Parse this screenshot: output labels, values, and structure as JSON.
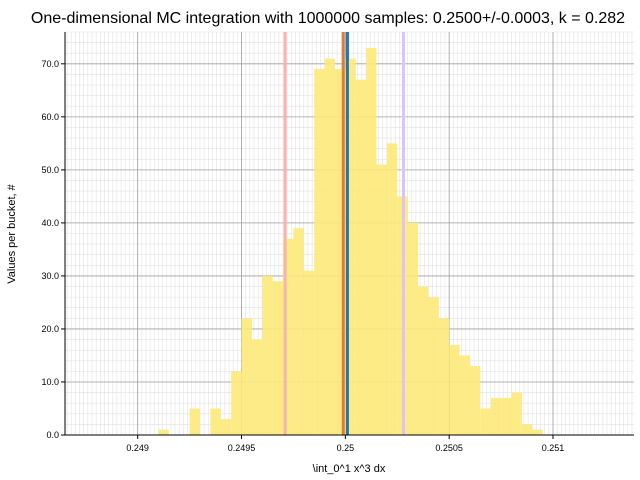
{
  "chart_data": {
    "type": "bar",
    "title": "One-dimensional MC integration with 1000000 samples: 0.2500+/-0.0003, k = 0.282",
    "xlabel": "\\int_0^1 x^3 dx",
    "ylabel": "Values per bucket, #",
    "xlim": [
      0.24865,
      0.25139
    ],
    "ylim": [
      0,
      76
    ],
    "grid": true,
    "x_major_ticks": [
      0.249,
      0.2495,
      0.25,
      0.2505,
      0.251
    ],
    "x_tick_labels": [
      "0.249",
      "0.2495",
      "0.25",
      "0.2505",
      "0.251"
    ],
    "y_major_ticks": [
      0,
      10,
      20,
      30,
      40,
      50,
      60,
      70
    ],
    "y_tick_labels": [
      "0.0",
      "10.0",
      "20.0",
      "30.0",
      "40.0",
      "50.0",
      "60.0",
      "70.0"
    ],
    "bar_color": "#fde979",
    "bin_width": 5e-05,
    "bins": [
      {
        "x": 0.2491,
        "value": 1
      },
      {
        "x": 0.24925,
        "value": 5
      },
      {
        "x": 0.24935,
        "value": 5
      },
      {
        "x": 0.2494,
        "value": 3
      },
      {
        "x": 0.24945,
        "value": 12
      },
      {
        "x": 0.2495,
        "value": 22
      },
      {
        "x": 0.24955,
        "value": 18
      },
      {
        "x": 0.2496,
        "value": 30
      },
      {
        "x": 0.24965,
        "value": 29
      },
      {
        "x": 0.2497,
        "value": 37
      },
      {
        "x": 0.24975,
        "value": 39
      },
      {
        "x": 0.2498,
        "value": 31
      },
      {
        "x": 0.24985,
        "value": 69
      },
      {
        "x": 0.2499,
        "value": 71
      },
      {
        "x": 0.24995,
        "value": 69
      },
      {
        "x": 0.25,
        "value": 71
      },
      {
        "x": 0.25005,
        "value": 67
      },
      {
        "x": 0.2501,
        "value": 73
      },
      {
        "x": 0.25015,
        "value": 51
      },
      {
        "x": 0.2502,
        "value": 55
      },
      {
        "x": 0.25025,
        "value": 45
      },
      {
        "x": 0.2503,
        "value": 40
      },
      {
        "x": 0.25035,
        "value": 28
      },
      {
        "x": 0.2504,
        "value": 26
      },
      {
        "x": 0.25045,
        "value": 22
      },
      {
        "x": 0.2505,
        "value": 17
      },
      {
        "x": 0.25055,
        "value": 15
      },
      {
        "x": 0.2506,
        "value": 13
      },
      {
        "x": 0.25065,
        "value": 5
      },
      {
        "x": 0.2507,
        "value": 7
      },
      {
        "x": 0.25075,
        "value": 7
      },
      {
        "x": 0.2508,
        "value": 8
      },
      {
        "x": 0.25085,
        "value": 2
      },
      {
        "x": 0.2509,
        "value": 1
      }
    ],
    "vlines": [
      {
        "x": 0.24971,
        "color": "#f4b6aa"
      },
      {
        "x": 0.24999,
        "color": "#e07b39"
      },
      {
        "x": 0.25001,
        "color": "#1f77b4"
      },
      {
        "x": 0.25028,
        "color": "#e1c2f5"
      }
    ]
  }
}
